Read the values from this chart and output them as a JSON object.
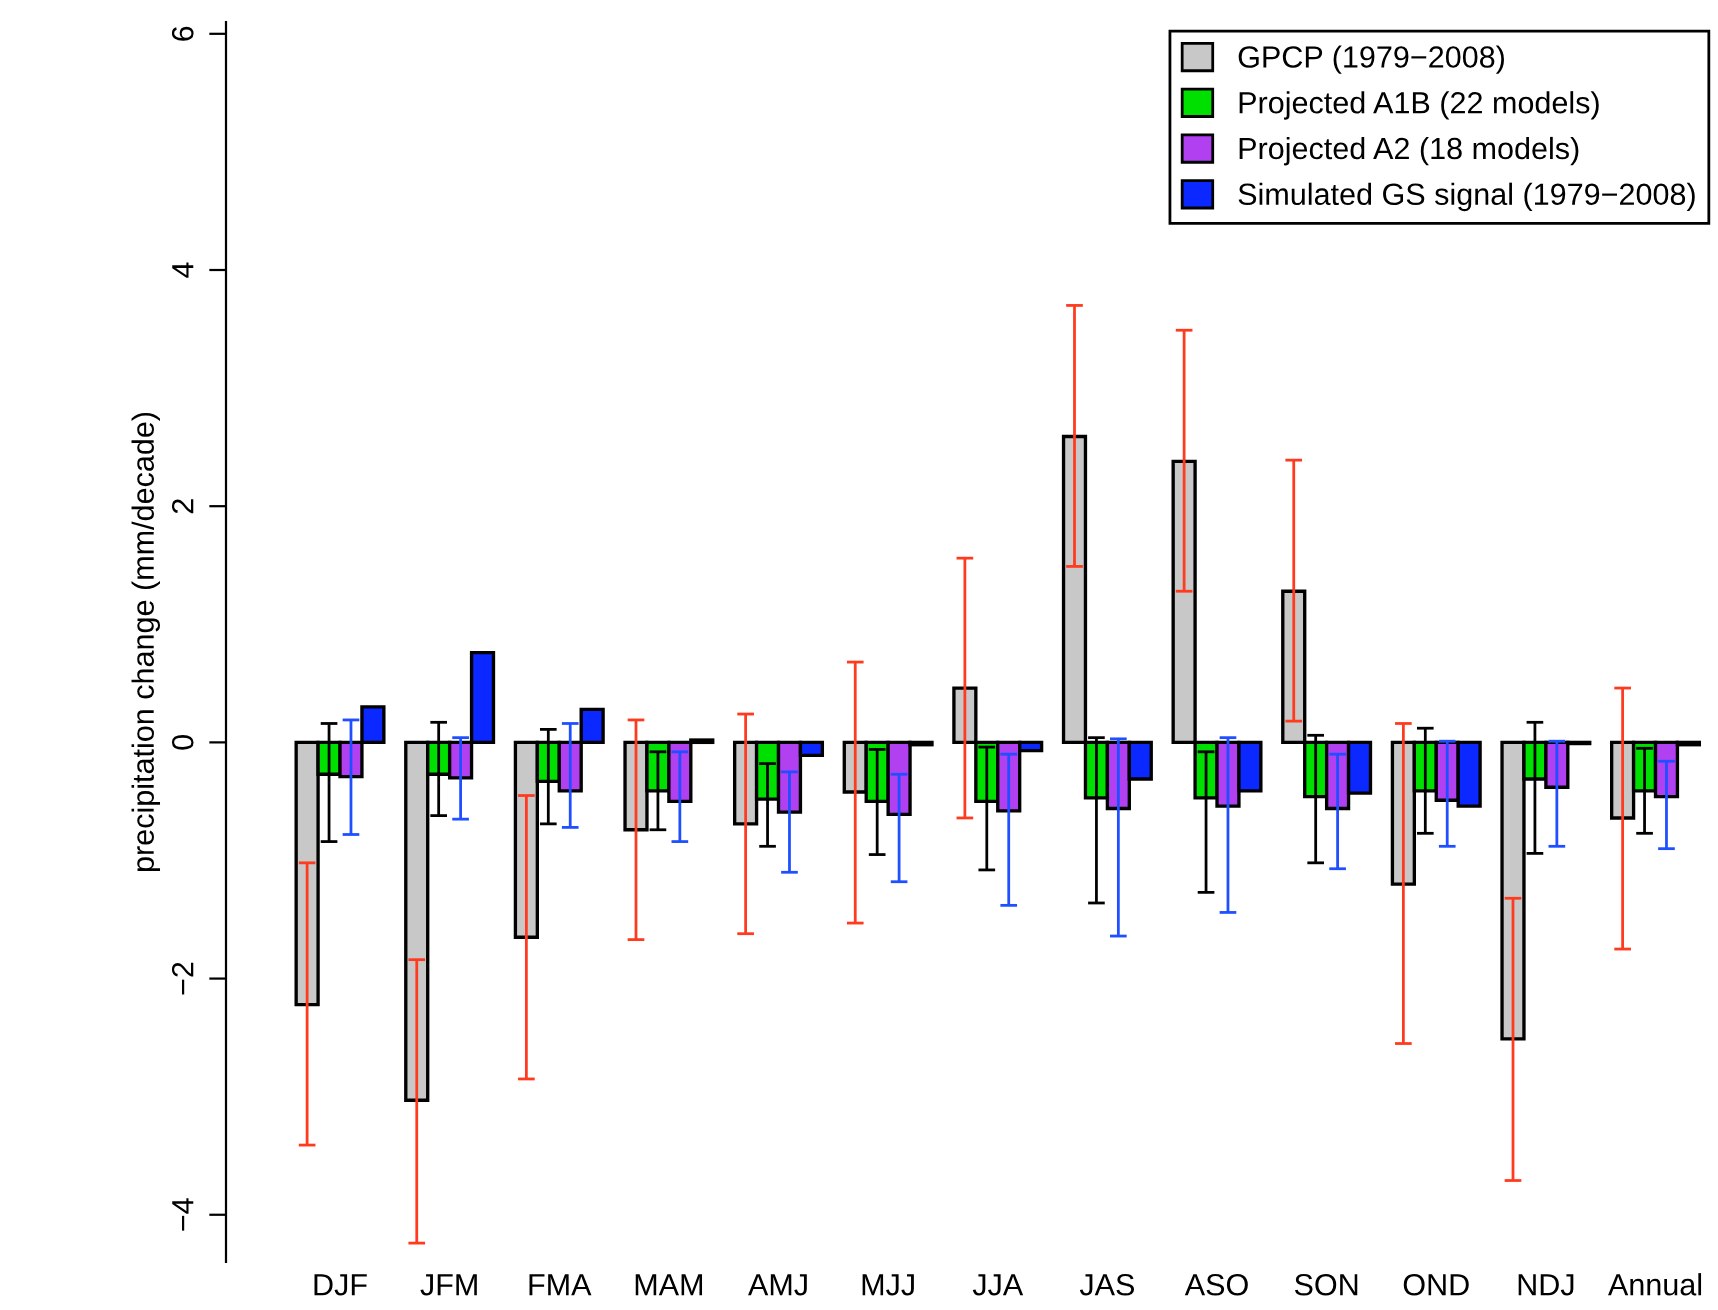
{
  "chart_data": {
    "type": "bar",
    "ylabel": "precipitation change (mm/decade)",
    "categories": [
      "DJF",
      "JFM",
      "FMA",
      "MAM",
      "AMJ",
      "MJJ",
      "JJA",
      "JAS",
      "ASO",
      "SON",
      "OND",
      "NDJ",
      "Annual"
    ],
    "series": [
      {
        "name": "GPCP (1979−2008)",
        "color": "#c8c8c8",
        "values": [
          -2.22,
          -3.03,
          -1.65,
          -0.74,
          -0.69,
          -0.42,
          0.46,
          2.59,
          2.38,
          1.28,
          -1.2,
          -2.51,
          -0.64
        ],
        "errors": [
          [
            -3.41,
            -1.02
          ],
          [
            -4.24,
            -1.84
          ],
          [
            -2.85,
            -0.45
          ],
          [
            -1.67,
            0.19
          ],
          [
            -1.62,
            0.24
          ],
          [
            -1.53,
            0.68
          ],
          [
            -0.64,
            1.56
          ],
          [
            1.49,
            3.7
          ],
          [
            1.28,
            3.49
          ],
          [
            0.18,
            2.39
          ],
          [
            -2.55,
            0.16
          ],
          [
            -3.71,
            -1.32
          ],
          [
            -1.75,
            0.46
          ]
        ]
      },
      {
        "name": "Projected A1B (22 models)",
        "color": "#00e000",
        "values": [
          -0.27,
          -0.27,
          -0.33,
          -0.41,
          -0.48,
          -0.5,
          -0.5,
          -0.47,
          -0.47,
          -0.46,
          -0.41,
          -0.31,
          -0.41
        ],
        "errors": [
          [
            -0.84,
            0.16
          ],
          [
            -0.62,
            0.17
          ],
          [
            -0.69,
            0.11
          ],
          [
            -0.74,
            -0.08
          ],
          [
            -0.88,
            -0.18
          ],
          [
            -0.95,
            -0.06
          ],
          [
            -1.08,
            -0.04
          ],
          [
            -1.36,
            0.04
          ],
          [
            -1.27,
            -0.08
          ],
          [
            -1.02,
            0.06
          ],
          [
            -0.77,
            0.12
          ],
          [
            -0.94,
            0.17
          ],
          [
            -0.77,
            -0.05
          ]
        ]
      },
      {
        "name": "Projected A2 (18 models)",
        "color": "#b040f0",
        "values": [
          -0.29,
          -0.3,
          -0.41,
          -0.5,
          -0.59,
          -0.61,
          -0.58,
          -0.56,
          -0.54,
          -0.56,
          -0.49,
          -0.38,
          -0.46
        ],
        "errors": [
          [
            -0.78,
            0.19
          ],
          [
            -0.65,
            0.04
          ],
          [
            -0.72,
            0.16
          ],
          [
            -0.84,
            -0.08
          ],
          [
            -1.1,
            -0.25
          ],
          [
            -1.18,
            -0.27
          ],
          [
            -1.38,
            -0.1
          ],
          [
            -1.64,
            0.03
          ],
          [
            -1.44,
            0.04
          ],
          [
            -1.07,
            -0.1
          ],
          [
            -0.88,
            0.01
          ],
          [
            -0.88,
            0.01
          ],
          [
            -0.9,
            -0.16
          ]
        ]
      },
      {
        "name": "Simulated GS signal (1979−2008)",
        "color": "#0a28ff",
        "values": [
          0.3,
          0.76,
          0.28,
          0.02,
          -0.11,
          -0.02,
          -0.07,
          -0.31,
          -0.41,
          -0.43,
          -0.54,
          -0.01,
          -0.02
        ]
      }
    ],
    "ylim": [
      -4.4,
      6.1
    ],
    "yticks": [
      -4,
      -2,
      0,
      2,
      4,
      6
    ],
    "legend": "top right"
  }
}
